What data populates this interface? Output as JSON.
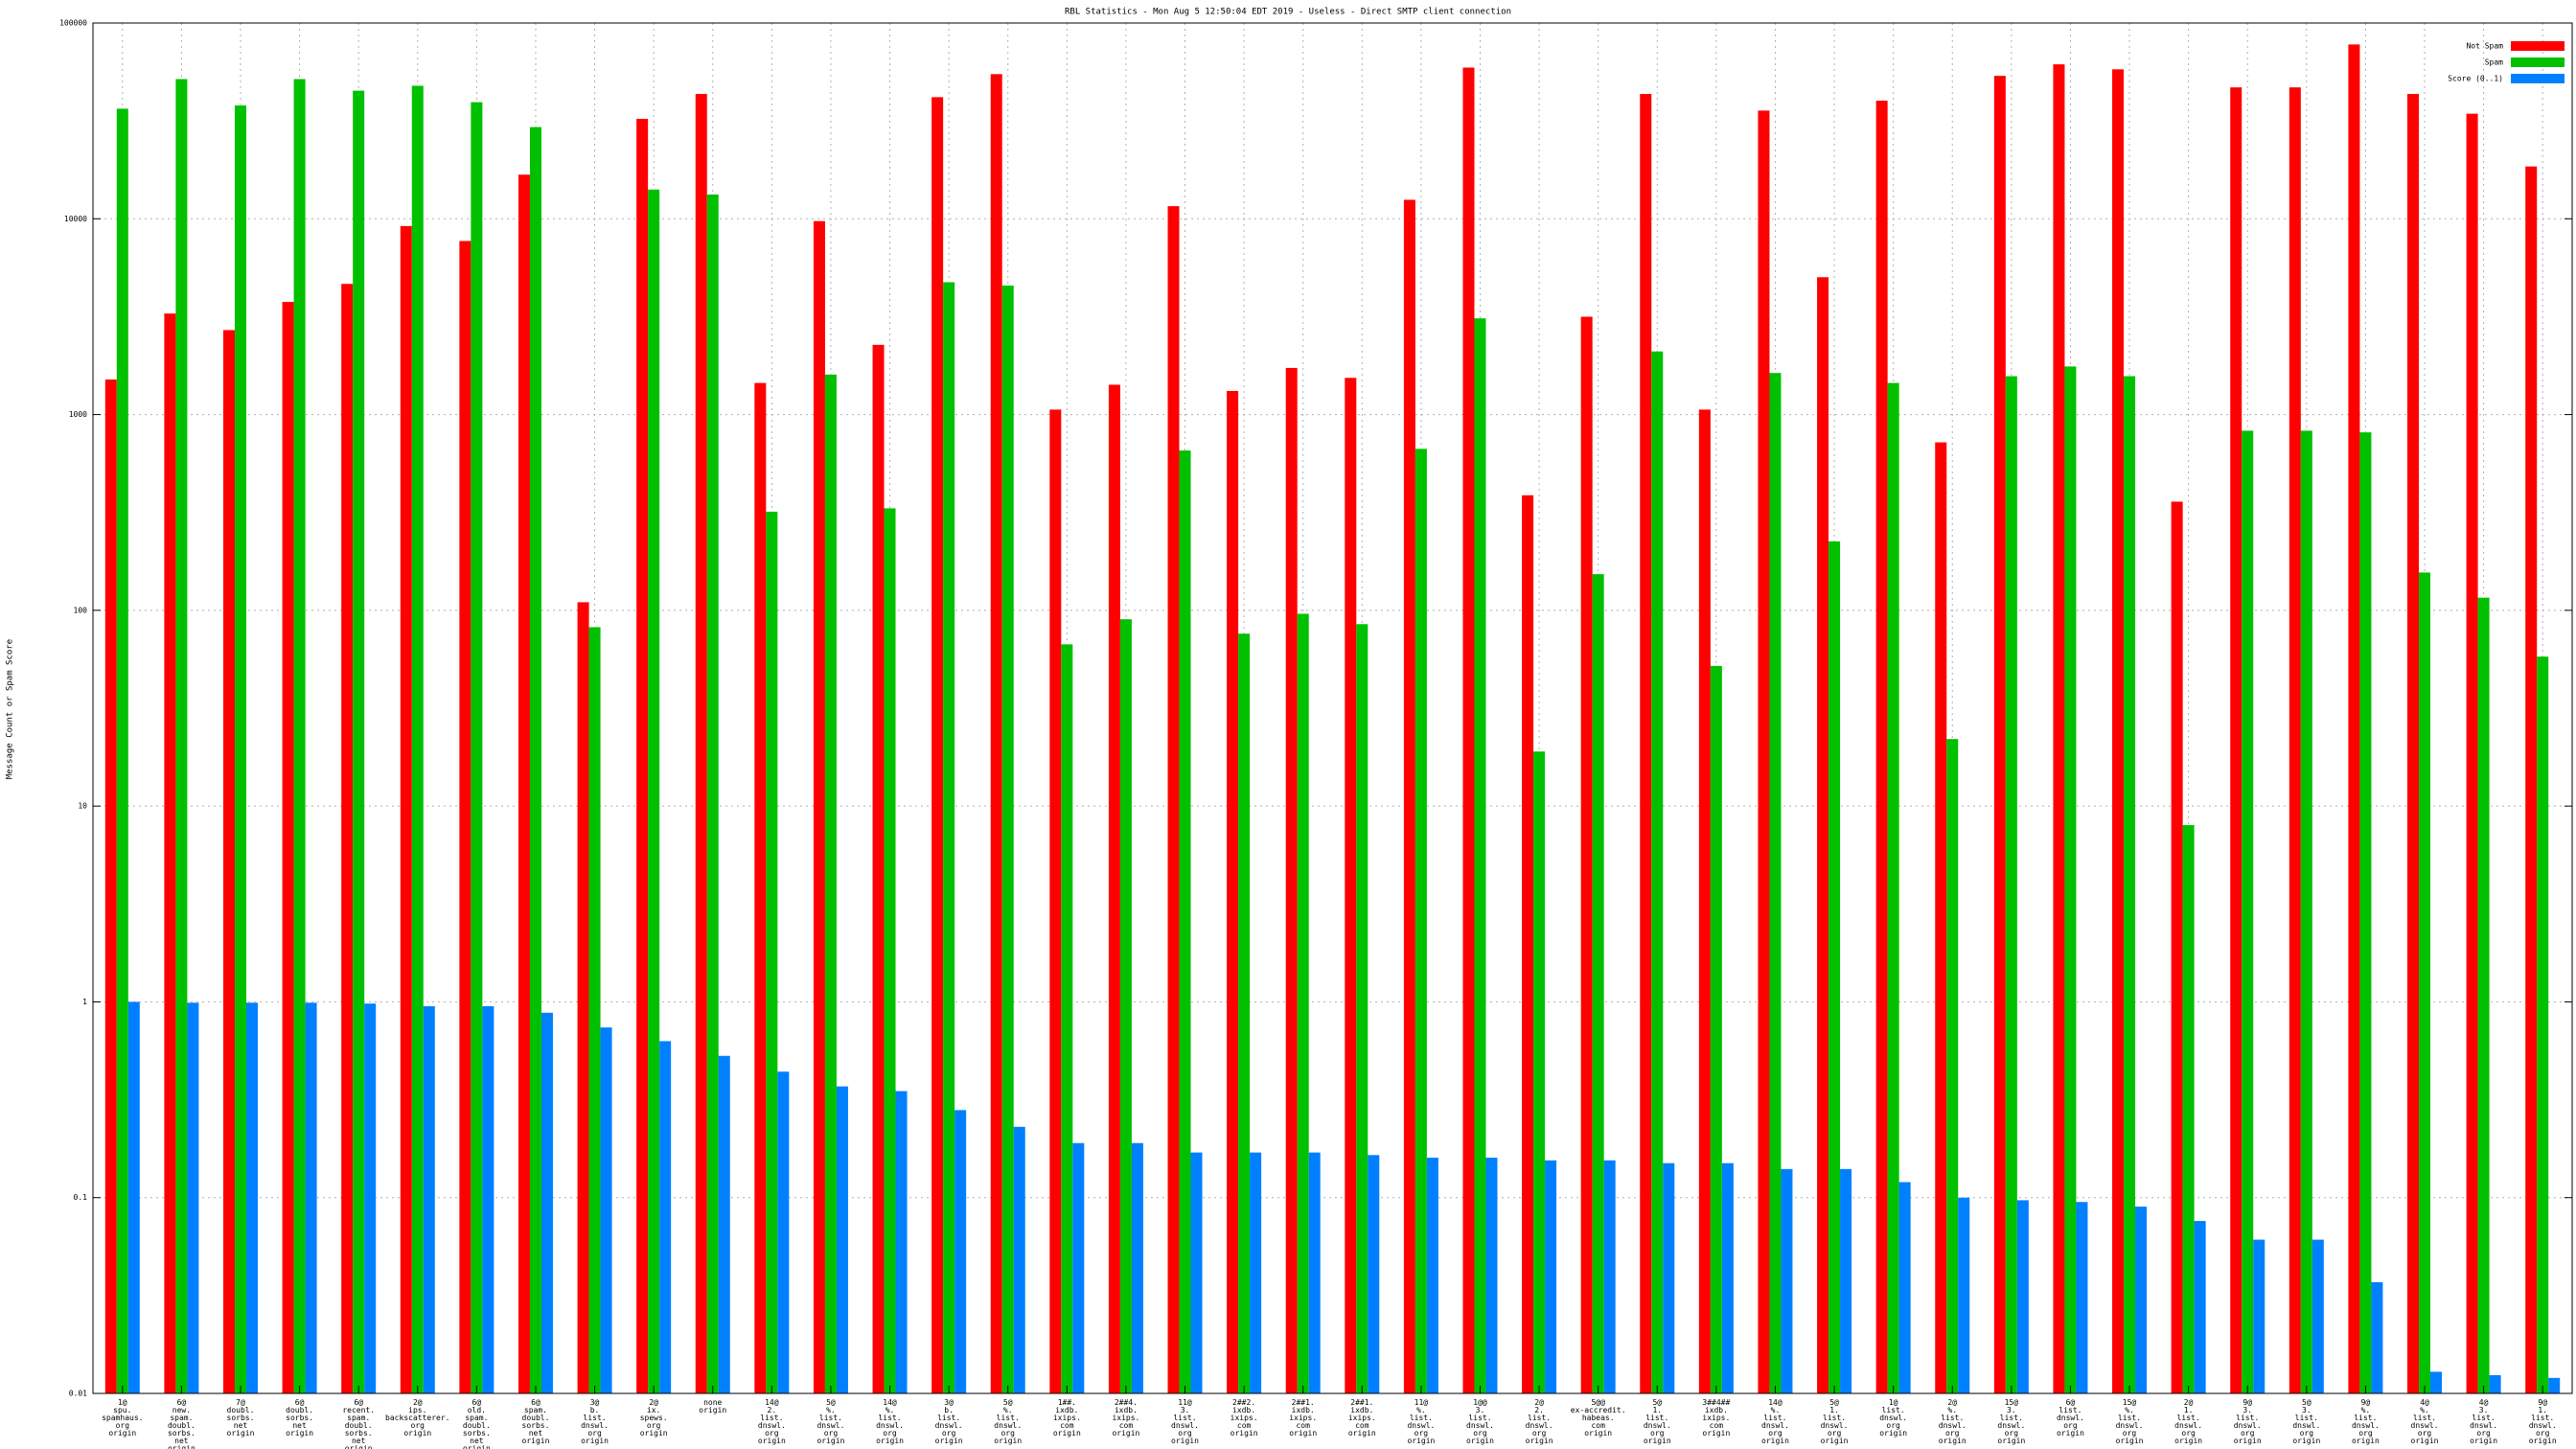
{
  "chart_data": {
    "type": "bar",
    "title": "RBL Statistics - Mon Aug  5 12:50:04 EDT 2019 - Useless - Direct SMTP client connection",
    "y_label": "Message Count or Spam Score",
    "log_y": true,
    "grid": true,
    "legend": "top-right",
    "ylim": [
      0.01,
      100000
    ],
    "yticks": [
      0.01,
      0.1,
      1,
      10,
      100,
      1000,
      10000,
      100000
    ],
    "categories": [
      "1@\nspu.\nspamhaus.\norg\norigin",
      "6@\nnew.\nspam.\ndoubl.\nsorbs.\nnet\norigin",
      "7@\ndoubl.\nsorbs.\nnet\norigin",
      "6@\ndoubl.\nsorbs.\nnet\norigin",
      "6@\nrecent.\nspam.\ndoubl.\nsorbs.\nnet\norigin",
      "2@\nips.\nbackscatterer.\norg\norigin",
      "6@\nold.\nspam.\ndoubl.\nsorbs.\nnet\norigin",
      "6@\nspam.\ndoubl.\nsorbs.\nnet\norigin",
      "3@\nb.\nlist.\ndnswl.\norg\norigin",
      "2@\nix.\nspews.\norg\norigin",
      "none\norigin",
      "14@\n2.\nlist.\ndnswl.\norg\norigin",
      "5@\n%.\nlist.\ndnswl.\norg\norigin",
      "14@\n%.\nlist.\ndnswl.\norg\norigin",
      "3@\nb.\nlist.\ndnswl.\norg\norigin",
      "5@\n%.\nlist.\ndnswl.\norg\norigin",
      "1##.\nixdb.\nixips.\ncom\norigin",
      "2##4.\nixdb.\nixips.\ncom\norigin",
      "11@\n3.\nlist.\ndnswl.\norg\norigin",
      "2##2.\nixdb.\nixips.\ncom\norigin",
      "2##1.\nixdb.\nixips.\ncom\norigin",
      "2##1.\nixdb.\nixips.\ncom\norigin",
      "11@\n%.\nlist.\ndnswl.\norg\norigin",
      "1@@\n3.\nlist.\ndnswl.\norg\norigin",
      "2@\n2.\nlist.\ndnswl.\norg\norigin",
      "5@@\nex-accredit.\nhabeas.\ncom\norigin",
      "5@\n1.\nlist.\ndnswl.\norg\norigin",
      "3##4##\nixdb.\nixips.\ncom\norigin",
      "14@\n%.\nlist.\ndnswl.\norg\norigin",
      "5@\n1.\nlist.\ndnswl.\norg\norigin",
      "1@\nlist.\ndnswl.\norg\norigin",
      "2@\n%.\nlist.\ndnswl.\norg\norigin",
      "15@\n3.\nlist.\ndnswl.\norg\norigin",
      "6@\nlist.\ndnswl.\norg\norigin",
      "15@\n%.\nlist.\ndnswl.\norg\norigin",
      "2@\n1.\nlist.\ndnswl.\norg\norigin",
      "9@\n3.\nlist.\ndnswl.\norg\norigin",
      "5@\n3.\nlist.\ndnswl.\norg\norigin",
      "9@\n%.\nlist.\ndnswl.\norg\norigin",
      "4@\n%.\nlist.\ndnswl.\norg\norigin",
      "4@\n3.\nlist.\ndnswl.\norg\norigin",
      "9@\n1.\nlist.\ndnswl.\norg\norigin"
    ],
    "series": [
      {
        "name": "Not Spam",
        "color": "#ff0000",
        "values": [
          1510,
          3280,
          2700,
          3760,
          4650,
          9180,
          7700,
          16800,
          110,
          32400,
          43400,
          1450,
          9730,
          2270,
          41800,
          54800,
          1060,
          1420,
          11600,
          1320,
          1730,
          1540,
          12500,
          59200,
          387,
          3160,
          43400,
          1060,
          35700,
          5030,
          40100,
          721,
          53700,
          61500,
          58000,
          359,
          46900,
          46900,
          77700,
          43400,
          34400,
          18500
        ]
      },
      {
        "name": "Spam",
        "color": "#00c000",
        "values": [
          36500,
          51700,
          37900,
          51700,
          45100,
          47800,
          39400,
          29400,
          82,
          14100,
          13300,
          319,
          1600,
          332,
          4740,
          4560,
          67,
          90,
          655,
          76,
          96,
          85,
          668,
          3100,
          19,
          153,
          2100,
          52,
          1630,
          225,
          1450,
          22,
          1570,
          1760,
          1570,
          8,
          827,
          827,
          811,
          156,
          116,
          58
        ]
      },
      {
        "name": "Score (0..1)",
        "color": "#0080ff",
        "values": [
          1.0,
          0.99,
          0.99,
          0.99,
          0.98,
          0.95,
          0.95,
          0.88,
          0.74,
          0.63,
          0.53,
          0.44,
          0.37,
          0.35,
          0.28,
          0.23,
          0.19,
          0.19,
          0.17,
          0.17,
          0.17,
          0.165,
          0.16,
          0.16,
          0.155,
          0.155,
          0.15,
          0.15,
          0.14,
          0.14,
          0.12,
          0.1,
          0.097,
          0.095,
          0.09,
          0.076,
          0.061,
          0.061,
          0.037,
          0.0129,
          0.0124,
          0.012
        ]
      }
    ]
  }
}
